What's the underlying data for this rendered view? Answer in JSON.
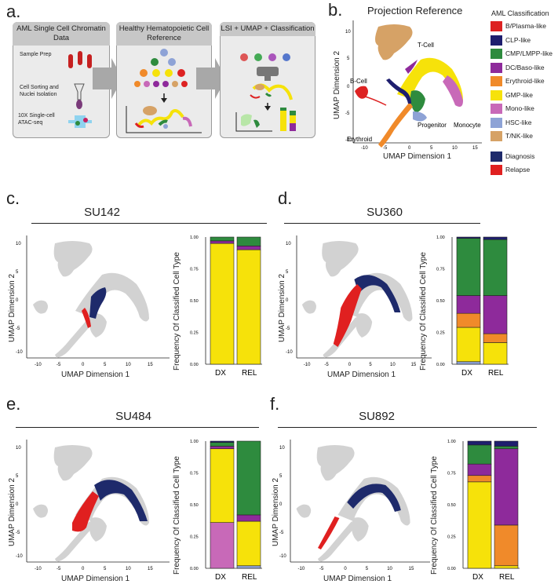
{
  "panel_a": {
    "letter": "a.",
    "box1": {
      "title": "AML Single Cell Chromatin Data",
      "steps": [
        "Sample Prep",
        "Cell Sorting and Nuclei Isolation",
        "10X Single-cell ATAC-seq"
      ]
    },
    "box2": {
      "title": "Healthy Hematopoietic Cell Reference"
    },
    "box3": {
      "title": "LSI + UMAP + Classification"
    }
  },
  "panel_b": {
    "letter": "b.",
    "title": "Projection Reference",
    "xlabel": "UMAP Dimension 1",
    "ylabel": "UMAP Dimension 2",
    "cluster_labels": [
      "T-Cell",
      "B-Cell",
      "Monocyte",
      "Progenitor",
      "Erythroid"
    ],
    "xticks": [
      "-10",
      "-5",
      "0",
      "5",
      "10",
      "15"
    ],
    "yticks": [
      "10",
      "5",
      "0",
      "-5",
      "-10"
    ]
  },
  "legend": {
    "title": "AML Classification",
    "items": [
      {
        "label": "B/Plasma-like",
        "color": "#dd2222"
      },
      {
        "label": "CLP-like",
        "color": "#1e1e6e"
      },
      {
        "label": "CMP/LMPP-like",
        "color": "#2e8b3e"
      },
      {
        "label": "DC/Baso-like",
        "color": "#8e2a9b"
      },
      {
        "label": "Erythroid-like",
        "color": "#f08a2a"
      },
      {
        "label": "GMP-like",
        "color": "#f6e20a"
      },
      {
        "label": "Mono-like",
        "color": "#c869b8"
      },
      {
        "label": "HSC-like",
        "color": "#8ea3d6"
      },
      {
        "label": "T/NK-like",
        "color": "#d6a266"
      }
    ],
    "status": [
      {
        "label": "Diagnosis",
        "color": "#1e2a6b"
      },
      {
        "label": "Relapse",
        "color": "#e02020"
      }
    ]
  },
  "common": {
    "umap_x": "UMAP Dimension 1",
    "umap_y": "UMAP Dimension 2",
    "bar_y": "Frequency Of Classified Cell Type",
    "bar_yticks": [
      "0.00",
      "0.25",
      "0.50",
      "0.75",
      "1.00"
    ],
    "bar_x": [
      "DX",
      "REL"
    ],
    "umap_xticks": [
      "-10",
      "-5",
      "0",
      "5",
      "10",
      "15"
    ],
    "umap_yticks": [
      "10",
      "5",
      "0",
      "-5",
      "-10"
    ]
  },
  "chart_data": [
    {
      "type": "bar",
      "panel": "c.",
      "title": "SU142",
      "categories": [
        "DX",
        "REL"
      ],
      "ylim": [
        0,
        1
      ],
      "series": [
        {
          "name": "GMP-like",
          "values": [
            0.95,
            0.9
          ]
        },
        {
          "name": "DC/Baso-like",
          "values": [
            0.02,
            0.03
          ]
        },
        {
          "name": "CMP/LMPP-like",
          "values": [
            0.03,
            0.07
          ]
        }
      ]
    },
    {
      "type": "bar",
      "panel": "d.",
      "title": "SU360",
      "categories": [
        "DX",
        "REL"
      ],
      "ylim": [
        0,
        1
      ],
      "series": [
        {
          "name": "HSC-like",
          "values": [
            0.02,
            0.0
          ]
        },
        {
          "name": "GMP-like",
          "values": [
            0.27,
            0.17
          ]
        },
        {
          "name": "Erythroid-like",
          "values": [
            0.11,
            0.07
          ]
        },
        {
          "name": "DC/Baso-like",
          "values": [
            0.14,
            0.3
          ]
        },
        {
          "name": "CMP/LMPP-like",
          "values": [
            0.45,
            0.44
          ]
        },
        {
          "name": "CLP-like",
          "values": [
            0.01,
            0.02
          ]
        }
      ]
    },
    {
      "type": "bar",
      "panel": "e.",
      "title": "SU484",
      "categories": [
        "DX",
        "REL"
      ],
      "ylim": [
        0,
        1
      ],
      "series": [
        {
          "name": "HSC-like",
          "values": [
            0.0,
            0.02
          ]
        },
        {
          "name": "Mono-like",
          "values": [
            0.36,
            0.0
          ]
        },
        {
          "name": "GMP-like",
          "values": [
            0.58,
            0.35
          ]
        },
        {
          "name": "DC/Baso-like",
          "values": [
            0.02,
            0.05
          ]
        },
        {
          "name": "CMP/LMPP-like",
          "values": [
            0.03,
            0.58
          ]
        },
        {
          "name": "CLP-like",
          "values": [
            0.01,
            0.0
          ]
        }
      ]
    },
    {
      "type": "bar",
      "panel": "f.",
      "title": "SU892",
      "categories": [
        "DX",
        "REL"
      ],
      "ylim": [
        0,
        1
      ],
      "series": [
        {
          "name": "GMP-like",
          "values": [
            0.68,
            0.02
          ]
        },
        {
          "name": "Erythroid-like",
          "values": [
            0.05,
            0.32
          ]
        },
        {
          "name": "DC/Baso-like",
          "values": [
            0.09,
            0.6
          ]
        },
        {
          "name": "CMP/LMPP-like",
          "values": [
            0.15,
            0.02
          ]
        },
        {
          "name": "CLP-like",
          "values": [
            0.03,
            0.04
          ]
        }
      ]
    }
  ]
}
